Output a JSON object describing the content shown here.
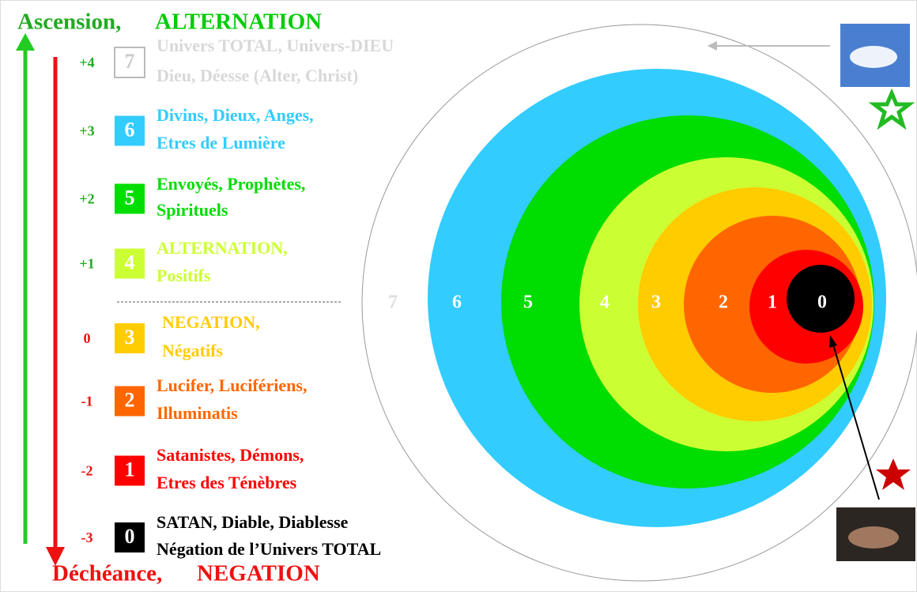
{
  "header": {
    "ascension": "Ascension,",
    "alternation": "ALTERNATION"
  },
  "footer": {
    "decheance": "Déchéance,",
    "negation": "NEGATION"
  },
  "levels": [
    {
      "score": "+4",
      "number": "7",
      "lines": [
        "Univers TOTAL,  Univers-DIEU",
        "Dieu, Déesse (Alter, Christ)"
      ]
    },
    {
      "score": "+3",
      "number": "6",
      "lines": [
        "Divins, Dieux, Anges,",
        "Etres de Lumière"
      ]
    },
    {
      "score": "+2",
      "number": "5",
      "lines": [
        "Envoyés, Prophètes,",
        "Spirituels"
      ]
    },
    {
      "score": "+1",
      "number": "4",
      "lines": [
        "ALTERNATION,",
        "Positifs"
      ]
    },
    {
      "score": "0",
      "number": "3",
      "lines": [
        "NEGATION,",
        "Négatifs"
      ]
    },
    {
      "score": "-1",
      "number": "2",
      "lines": [
        "Lucifer, Lucifériens,",
        "Illuminatis"
      ]
    },
    {
      "score": "-2",
      "number": "1",
      "lines": [
        "Satanistes, Démons,",
        "Etres des Ténèbres"
      ]
    },
    {
      "score": "-3",
      "number": "0",
      "lines": [
        "SATAN, Diable, Diablesse",
        "Négation de l’Univers TOTAL"
      ]
    }
  ],
  "circle_labels": [
    "7",
    "6",
    "5",
    "4",
    "3",
    "2",
    "1",
    "0"
  ]
}
